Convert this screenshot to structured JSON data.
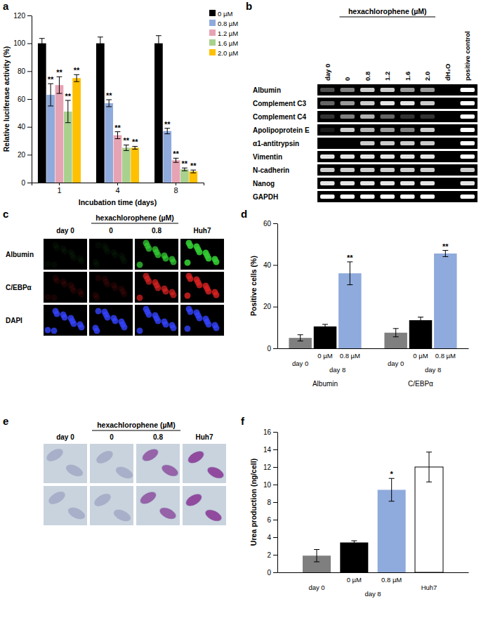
{
  "chart_data": [
    {
      "panel": "a",
      "type": "bar",
      "y_label": "Relative luciferase activity (%)",
      "x_label": "Incubation time (days)",
      "categories": [
        "1",
        "4",
        "8"
      ],
      "series": [
        {
          "name": "0 µM",
          "color": "#000000",
          "values": [
            100,
            100,
            100
          ],
          "errors": [
            3.5,
            4.5,
            5.5
          ],
          "significance": [
            null,
            null,
            null
          ]
        },
        {
          "name": "0.8 µM",
          "color": "#8faadc",
          "values": [
            63,
            57,
            37
          ],
          "errors": [
            8,
            2.5,
            2
          ],
          "significance": [
            "**",
            "**",
            "**"
          ]
        },
        {
          "name": "1.2 µM",
          "color": "#e6a3b4",
          "values": [
            70,
            34,
            16
          ],
          "errors": [
            6,
            2.5,
            1.5
          ],
          "significance": [
            "**",
            "**",
            "**"
          ]
        },
        {
          "name": "1.6 µM",
          "color": "#a9d18e",
          "values": [
            51,
            25,
            9.5
          ],
          "errors": [
            8,
            2,
            1
          ],
          "significance": [
            "**",
            "**",
            "**"
          ]
        },
        {
          "name": "2.0 µM",
          "color": "#ffc000",
          "values": [
            75,
            25,
            8
          ],
          "errors": [
            2.5,
            1,
            1
          ],
          "significance": [
            "**",
            "**",
            "**"
          ]
        }
      ],
      "ylim": [
        0,
        120
      ],
      "yticks": [
        0,
        20,
        40,
        60,
        80,
        100,
        120
      ],
      "legend": "top-right"
    },
    {
      "panel": "b",
      "type": "gel",
      "header": "hexachlorophene (µM)",
      "columns": [
        "day 0",
        "0",
        "0.8",
        "1.2",
        "1.6",
        "2.0",
        "dH₂O",
        "positive control"
      ],
      "rows": [
        {
          "name": "Albumin",
          "values": [
            0.3,
            0.5,
            0.8,
            0.8,
            0.6,
            0.6,
            0,
            1
          ]
        },
        {
          "name": "Complement C3",
          "values": [
            0.4,
            0.6,
            0.8,
            0.9,
            0.9,
            0.8,
            0,
            1
          ]
        },
        {
          "name": "Complement C4",
          "values": [
            0.2,
            0.5,
            0.7,
            0.4,
            0.2,
            0.2,
            0,
            1
          ]
        },
        {
          "name": "Apolipoprotein E",
          "values": [
            0.1,
            0.8,
            0.7,
            0.6,
            0.5,
            0.8,
            0,
            1
          ]
        },
        {
          "name": "α1-antitrypsin",
          "values": [
            0,
            0,
            0.8,
            0.8,
            0.8,
            0.8,
            0,
            1
          ]
        },
        {
          "name": "Vimentin",
          "values": [
            0.9,
            0.9,
            0.9,
            0.9,
            0.9,
            0.9,
            0,
            1
          ]
        },
        {
          "name": "N-cadherin",
          "values": [
            0.8,
            0.8,
            0.8,
            0.8,
            0.8,
            0.8,
            0,
            0.8
          ]
        },
        {
          "name": "Nanog",
          "values": [
            0.9,
            0.9,
            0.9,
            0.9,
            0.9,
            0.9,
            0,
            0.9
          ]
        },
        {
          "name": "GAPDH",
          "values": [
            1,
            1,
            1,
            1,
            1,
            1,
            0,
            1
          ]
        }
      ]
    },
    {
      "panel": "c",
      "type": "fluorescence",
      "header": "hexachlorophene (µM)",
      "columns": [
        "day 0",
        "0",
        "0.8",
        "Huh7"
      ],
      "rows": [
        {
          "name": "Albumin",
          "color": "#33cc33",
          "values": [
            0.05,
            0.05,
            0.75,
            0.9
          ]
        },
        {
          "name": "C/EBPα",
          "color": "#dd2222",
          "values": [
            0.1,
            0.1,
            0.7,
            0.8
          ]
        },
        {
          "name": "DAPI",
          "color": "#3344ff",
          "values": [
            0.8,
            0.8,
            0.8,
            0.8
          ]
        }
      ]
    },
    {
      "panel": "d",
      "type": "bar",
      "y_label": "Positive cells (%)",
      "categories": [
        "Albumin",
        "C/EBPα"
      ],
      "series": [
        {
          "name": "day 0",
          "color": "#7f7f7f",
          "values": [
            5,
            7.5
          ],
          "errors": [
            1.5,
            2
          ],
          "significance": [
            null,
            null
          ]
        },
        {
          "name": "0 µM",
          "group": "day 8",
          "color": "#000000",
          "values": [
            10.5,
            13.5
          ],
          "errors": [
            1,
            1.5
          ],
          "significance": [
            null,
            null
          ]
        },
        {
          "name": "0.8 µM",
          "group": "day 8",
          "color": "#8faadc",
          "values": [
            36,
            45.5
          ],
          "errors": [
            5.5,
            1.5
          ],
          "significance": [
            "**",
            "**"
          ]
        }
      ],
      "ylim": [
        0,
        60
      ],
      "yticks": [
        0,
        20,
        40,
        60
      ]
    },
    {
      "panel": "e",
      "type": "micrograph",
      "header": "hexachlorophene (µM)",
      "columns": [
        "day 0",
        "0",
        "0.8",
        "Huh7"
      ],
      "rows": [
        {
          "color": "#8e3f99",
          "values": [
            0.05,
            0.05,
            0.7,
            0.9
          ]
        },
        {
          "color": "#8e3f99",
          "values": [
            0.05,
            0.05,
            0.7,
            0.9
          ]
        }
      ]
    },
    {
      "panel": "f",
      "type": "bar",
      "y_label": "Urea production (ng/cell)",
      "categories": [
        null
      ],
      "series": [
        {
          "name": "day 0",
          "color": "#7f7f7f",
          "values": [
            1.9
          ],
          "errors": [
            0.7
          ],
          "significance": [
            null
          ]
        },
        {
          "name": "0 µM",
          "group": "day 8",
          "color": "#000000",
          "values": [
            3.4
          ],
          "errors": [
            0.2
          ],
          "significance": [
            null
          ]
        },
        {
          "name": "0.8 µM",
          "group": "day 8",
          "color": "#8faadc",
          "values": [
            9.4
          ],
          "errors": [
            1.3
          ],
          "significance": [
            "*"
          ]
        },
        {
          "name": "Huh7",
          "color": "#ffffff",
          "values": [
            12
          ],
          "errors": [
            1.7
          ],
          "significance": [
            null
          ]
        }
      ],
      "ylim": [
        0,
        16
      ],
      "yticks": [
        0,
        2,
        4,
        6,
        8,
        10,
        12,
        14,
        16
      ]
    }
  ]
}
